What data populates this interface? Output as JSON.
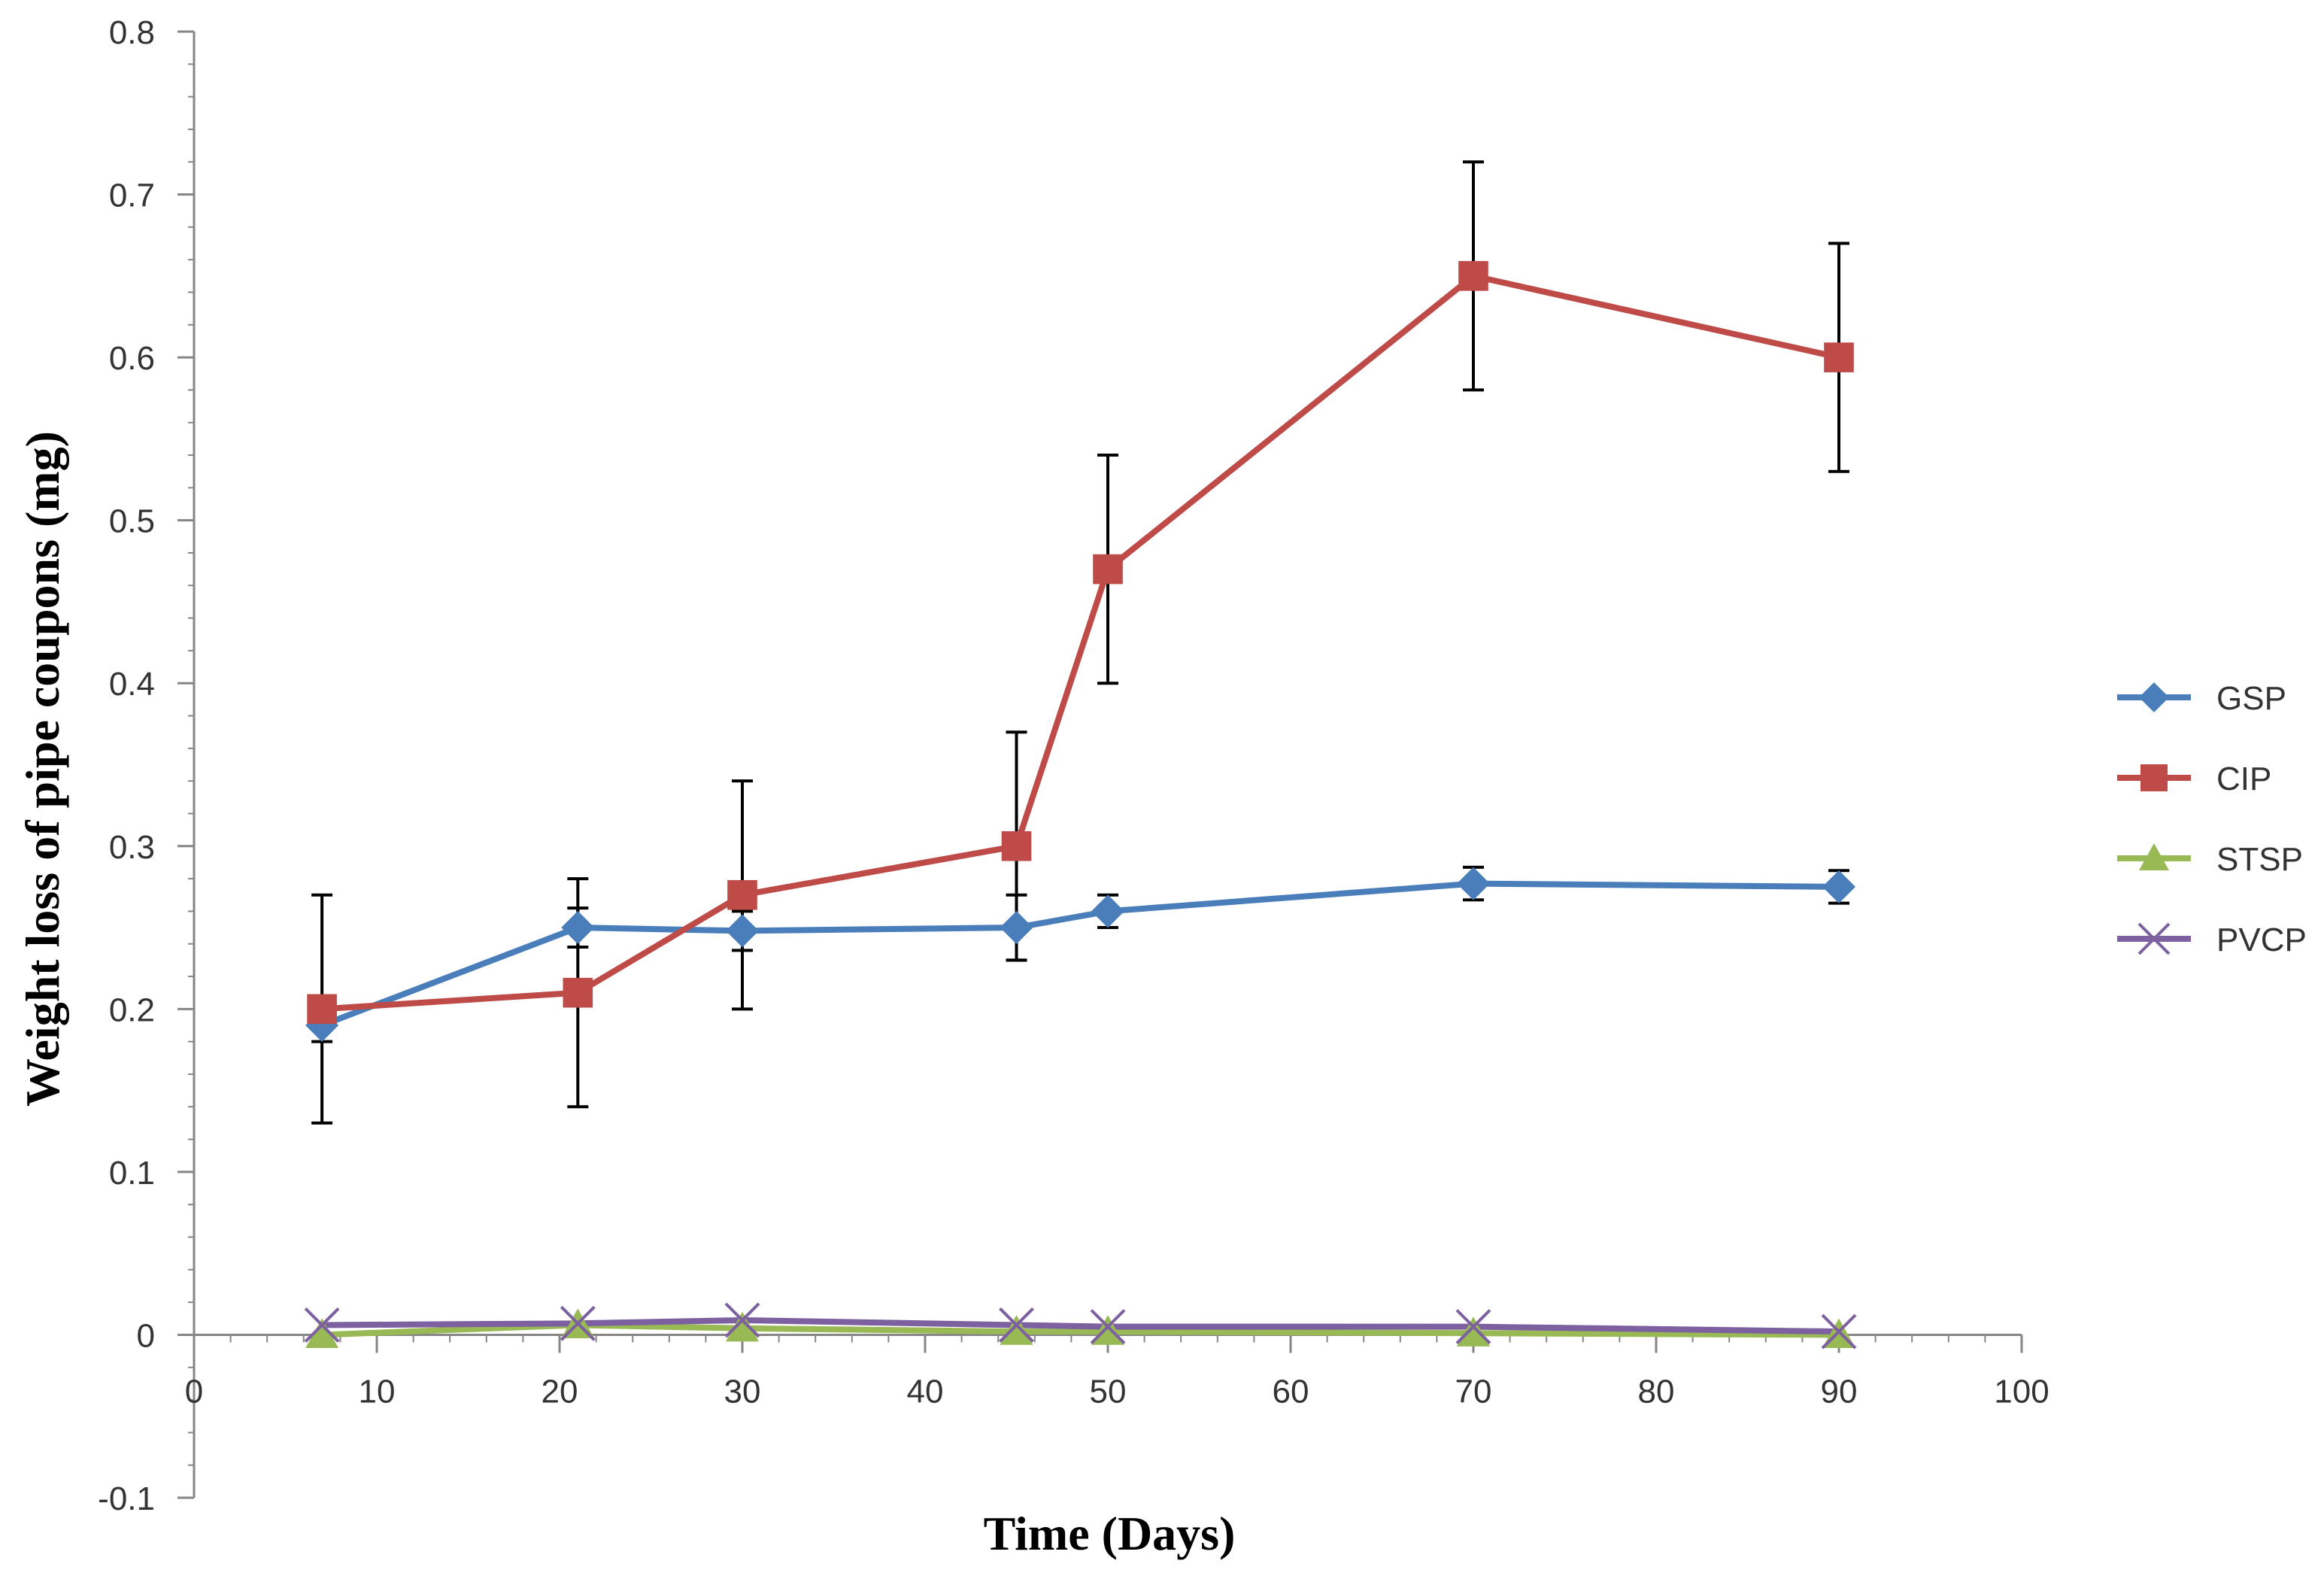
{
  "chart_data": {
    "type": "line",
    "title": "",
    "xlabel": "Time (Days)",
    "ylabel": "Weight loss of pipe coupons (mg)",
    "xlim": [
      0,
      100
    ],
    "ylim": [
      -0.1,
      0.8
    ],
    "x_ticks": [
      0,
      10,
      20,
      30,
      40,
      50,
      60,
      70,
      80,
      90,
      100
    ],
    "x_tick_labels": [
      "0",
      "10",
      "20",
      "30",
      "40",
      "50",
      "60",
      "70",
      "80",
      "90",
      "100"
    ],
    "y_ticks": [
      -0.1,
      0,
      0.1,
      0.2,
      0.3,
      0.4,
      0.5,
      0.6,
      0.7,
      0.8
    ],
    "y_tick_labels": [
      "-0.1",
      "0",
      "0.1",
      "0.2",
      "0.3",
      "0.4",
      "0.5",
      "0.6",
      "0.7",
      "0.8"
    ],
    "grid": false,
    "legend_position": "right",
    "x": [
      7,
      21,
      30,
      45,
      50,
      70,
      90
    ],
    "series": [
      {
        "name": "GSP",
        "color": "#4a7ebb",
        "marker": "diamond",
        "values": [
          0.19,
          0.25,
          0.248,
          0.25,
          0.26,
          0.277,
          0.275
        ],
        "errors": [
          0.01,
          0.012,
          0.012,
          0.02,
          0.01,
          0.01,
          0.01
        ]
      },
      {
        "name": "CIP",
        "color": "#be4b48",
        "marker": "square",
        "values": [
          0.2,
          0.21,
          0.27,
          0.3,
          0.47,
          0.65,
          0.6
        ],
        "errors": [
          0.07,
          0.07,
          0.07,
          0.07,
          0.07,
          0.07,
          0.07
        ]
      },
      {
        "name": "STSP",
        "color": "#98b954",
        "marker": "triangle",
        "values": [
          0.0,
          0.006,
          0.004,
          0.002,
          0.002,
          0.001,
          0.0
        ],
        "errors": [
          0,
          0,
          0,
          0,
          0,
          0,
          0
        ]
      },
      {
        "name": "PVCP",
        "color": "#7d60a0",
        "marker": "x",
        "values": [
          0.006,
          0.007,
          0.009,
          0.006,
          0.005,
          0.005,
          0.002
        ],
        "errors": [
          0,
          0,
          0,
          0,
          0,
          0,
          0
        ]
      }
    ]
  }
}
